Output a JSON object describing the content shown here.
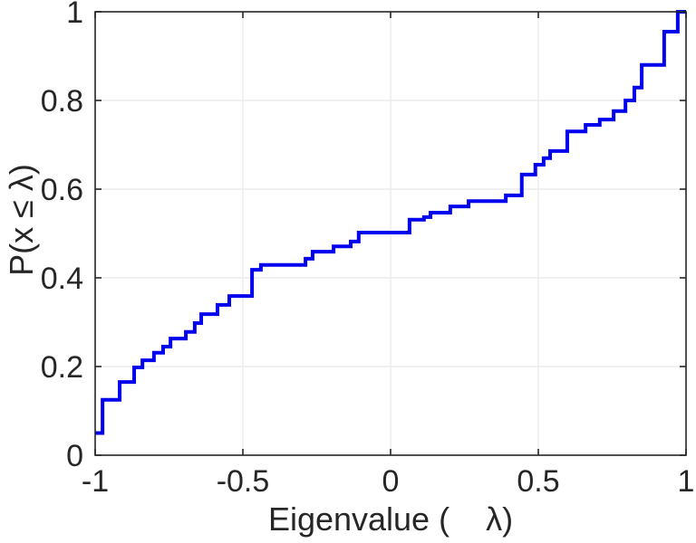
{
  "chart_data": {
    "type": "line",
    "subtype": "ecdf-step",
    "title": "",
    "xlabel": "Eigenvalue (    λ)",
    "ylabel": "P(x ≤ λ)",
    "xlim": [
      -1,
      1
    ],
    "ylim": [
      0,
      1
    ],
    "grid": true,
    "legend": "none",
    "x_ticks": [
      -1,
      -0.5,
      0,
      0.5,
      1
    ],
    "x_tick_labels": [
      "-1",
      "-0.5",
      "0",
      "0.5",
      "1"
    ],
    "y_ticks": [
      0,
      0.2,
      0.4,
      0.6,
      0.8,
      1
    ],
    "y_tick_labels": [
      "0",
      "0.2",
      "0.4",
      "0.6",
      "0.8",
      "1"
    ],
    "line_color": "#0000EE",
    "line_width": 4,
    "axis_color": "#262626",
    "grid_color": "#e8e8e8",
    "tick_label_color": "#404040",
    "start": [
      -1.0,
      0.05
    ],
    "end_x": 1.0,
    "steps": [
      [
        -0.975,
        0.125
      ],
      [
        -0.917,
        0.165
      ],
      [
        -0.868,
        0.198
      ],
      [
        -0.84,
        0.214
      ],
      [
        -0.801,
        0.231
      ],
      [
        -0.77,
        0.245
      ],
      [
        -0.745,
        0.263
      ],
      [
        -0.693,
        0.278
      ],
      [
        -0.663,
        0.298
      ],
      [
        -0.641,
        0.318
      ],
      [
        -0.586,
        0.339
      ],
      [
        -0.546,
        0.359
      ],
      [
        -0.469,
        0.418
      ],
      [
        -0.439,
        0.429
      ],
      [
        -0.288,
        0.443
      ],
      [
        -0.264,
        0.459
      ],
      [
        -0.193,
        0.471
      ],
      [
        -0.135,
        0.482
      ],
      [
        -0.108,
        0.502
      ],
      [
        0.064,
        0.531
      ],
      [
        0.113,
        0.537
      ],
      [
        0.135,
        0.547
      ],
      [
        0.202,
        0.561
      ],
      [
        0.264,
        0.573
      ],
      [
        0.39,
        0.586
      ],
      [
        0.444,
        0.633
      ],
      [
        0.49,
        0.655
      ],
      [
        0.518,
        0.67
      ],
      [
        0.54,
        0.686
      ],
      [
        0.598,
        0.73
      ],
      [
        0.66,
        0.745
      ],
      [
        0.708,
        0.757
      ],
      [
        0.755,
        0.776
      ],
      [
        0.795,
        0.8
      ],
      [
        0.825,
        0.829
      ],
      [
        0.85,
        0.88
      ],
      [
        0.926,
        0.955
      ],
      [
        0.972,
        1.0
      ]
    ]
  }
}
